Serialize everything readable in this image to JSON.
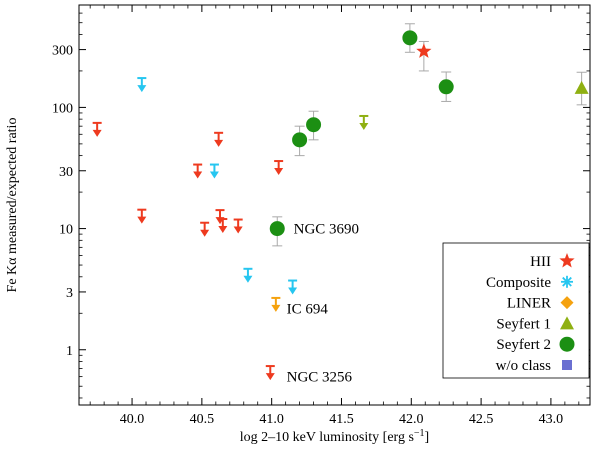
{
  "colors": {
    "HII": "#ee3a1f",
    "Composite": "#26c6f0",
    "LINER": "#f5a20f",
    "Seyfert 1": "#8fb012",
    "Seyfert 2": "#1c8f13",
    "w/o class": "#6a6fd1",
    "errorbar": "#a9a9a9"
  },
  "chart_data": {
    "type": "scatter",
    "xlabel": "log 2–10 keV luminosity [erg s",
    "xlabel_sup": "−1",
    "xlabel_end": "]",
    "ylabel": "Fe Kα measured/expected ratio",
    "xlim": [
      39.62,
      43.28
    ],
    "ylim": [
      0.35,
      700
    ],
    "yscale": "log",
    "grid": false,
    "legend_position": "bottom-right",
    "x_ticks": [
      "40.0",
      "40.5",
      "41.0",
      "41.5",
      "42.0",
      "42.5",
      "43.0"
    ],
    "x_tick_values": [
      40.0,
      40.5,
      41.0,
      41.5,
      42.0,
      42.5,
      43.0
    ],
    "y_ticks": [
      "1",
      "3",
      "10",
      "30",
      "100",
      "300"
    ],
    "y_tick_values": [
      1,
      3,
      10,
      30,
      100,
      300
    ],
    "legend": [
      "HII",
      "Composite",
      "LINER",
      "Seyfert 1",
      "Seyfert 2",
      "w/o class"
    ],
    "annotations": [
      {
        "text": "NGC 3690",
        "x": 41.1,
        "y": 10
      },
      {
        "text": "IC 694",
        "x": 41.05,
        "y": 2.2
      },
      {
        "text": "NGC 3256",
        "x": 41.05,
        "y": 0.6
      }
    ],
    "series": [
      {
        "name": "HII",
        "marker": "upper-limit",
        "points": [
          {
            "x": 39.75,
            "y": 64
          },
          {
            "x": 40.07,
            "y": 12.3
          },
          {
            "x": 40.47,
            "y": 29
          },
          {
            "x": 40.52,
            "y": 9.6
          },
          {
            "x": 40.62,
            "y": 53
          },
          {
            "x": 40.63,
            "y": 12.2
          },
          {
            "x": 40.65,
            "y": 10.3
          },
          {
            "x": 40.76,
            "y": 10.2
          },
          {
            "x": 41.05,
            "y": 31
          },
          {
            "x": 40.99,
            "y": 0.63
          }
        ]
      },
      {
        "name": "HII",
        "marker": "star",
        "points": [
          {
            "x": 42.09,
            "y": 290,
            "ylo": 200,
            "yhi": 350
          }
        ]
      },
      {
        "name": "Composite",
        "marker": "upper-limit",
        "points": [
          {
            "x": 40.07,
            "y": 150
          },
          {
            "x": 40.59,
            "y": 29
          },
          {
            "x": 40.83,
            "y": 4.0
          },
          {
            "x": 41.15,
            "y": 3.2
          }
        ]
      },
      {
        "name": "LINER",
        "marker": "upper-limit",
        "points": [
          {
            "x": 41.03,
            "y": 2.3
          }
        ]
      },
      {
        "name": "Seyfert 1",
        "marker": "upper-limit",
        "points": [
          {
            "x": 41.66,
            "y": 73
          }
        ]
      },
      {
        "name": "Seyfert 1",
        "marker": "triangle",
        "points": [
          {
            "x": 43.22,
            "y": 145,
            "ylo": 105,
            "yhi": 195
          }
        ]
      },
      {
        "name": "Seyfert 2",
        "marker": "circle",
        "points": [
          {
            "x": 41.04,
            "y": 10,
            "ylo": 7.2,
            "yhi": 12.5
          },
          {
            "x": 41.2,
            "y": 54,
            "ylo": 40,
            "yhi": 70
          },
          {
            "x": 41.3,
            "y": 72,
            "ylo": 54,
            "yhi": 93
          },
          {
            "x": 41.99,
            "y": 375,
            "ylo": 285,
            "yhi": 490
          },
          {
            "x": 42.25,
            "y": 148,
            "ylo": 112,
            "yhi": 196
          }
        ]
      }
    ]
  }
}
